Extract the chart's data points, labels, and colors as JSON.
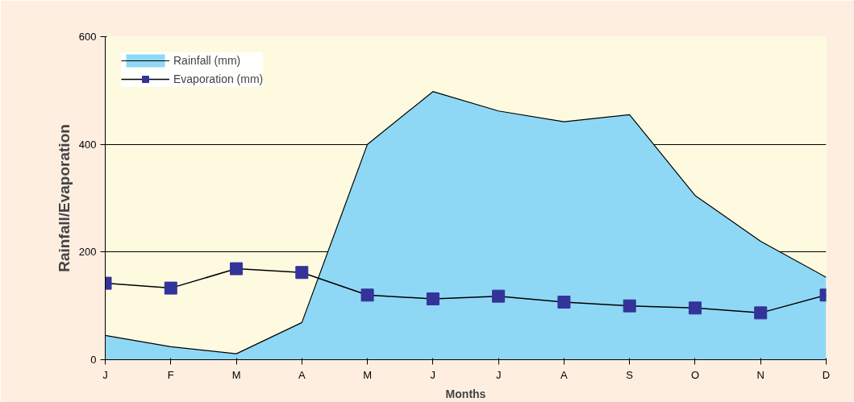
{
  "chart_data": {
    "type": "line",
    "xlabel": "Months",
    "ylabel": "Rainfall/Evaporation",
    "categories": [
      "J",
      "F",
      "M",
      "A",
      "M",
      "J",
      "J",
      "A",
      "S",
      "O",
      "N",
      "D"
    ],
    "series": [
      {
        "name": "Rainfall (mm)",
        "type": "area",
        "color": "#8fd8f5",
        "values": [
          45,
          24,
          11,
          69,
          400,
          498,
          462,
          442,
          455,
          305,
          220,
          153
        ]
      },
      {
        "name": "Evaporation (mm)",
        "color": "#333399",
        "marker": "square",
        "values": [
          142,
          133,
          169,
          162,
          120,
          113,
          118,
          107,
          100,
          96,
          87,
          120
        ]
      }
    ],
    "ylim": [
      0,
      600
    ],
    "yticks": [
      0,
      200,
      400,
      600
    ],
    "grid": "y",
    "legend": "top left"
  }
}
